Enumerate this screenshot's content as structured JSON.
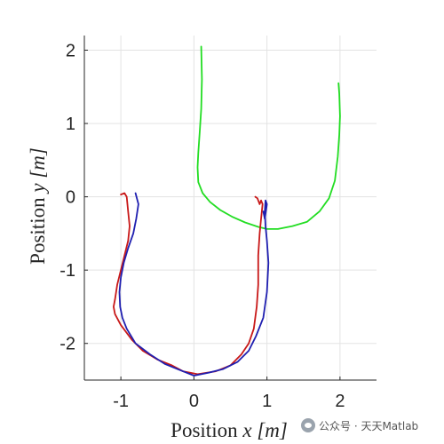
{
  "chart_data": {
    "type": "line",
    "xlabel": {
      "prefix": "Position ",
      "var": "x",
      "unit": "[m]"
    },
    "ylabel": {
      "prefix": "Position ",
      "var": "y",
      "unit": "[m]"
    },
    "xlim": [
      -1.5,
      2.5
    ],
    "ylim": [
      -2.5,
      2.2
    ],
    "xticks": [
      -1,
      0,
      1,
      2
    ],
    "xtick_labels": [
      "-1",
      "0",
      "1",
      "2"
    ],
    "yticks": [
      -2,
      -1,
      0,
      1,
      2
    ],
    "ytick_labels": [
      "-2",
      "-1",
      "0",
      "1",
      "2"
    ],
    "grid": true,
    "series": [
      {
        "color": "#22dd22",
        "x": [
          0.1,
          0.11,
          0.1,
          0.08,
          0.06,
          0.05,
          0.06,
          0.12,
          0.22,
          0.36,
          0.52,
          0.7,
          0.88,
          1.0,
          1.15,
          1.35,
          1.55,
          1.72,
          1.85,
          1.93,
          1.97,
          1.99,
          2.0,
          1.99,
          1.98
        ],
        "y": [
          2.05,
          1.6,
          1.2,
          0.9,
          0.6,
          0.4,
          0.2,
          0.05,
          -0.07,
          -0.18,
          -0.27,
          -0.35,
          -0.41,
          -0.44,
          -0.44,
          -0.4,
          -0.34,
          -0.2,
          -0.02,
          0.22,
          0.55,
          0.85,
          1.1,
          1.4,
          1.55
        ]
      },
      {
        "color": "#c81818",
        "x": [
          -1.0,
          -0.95,
          -0.92,
          -0.9,
          -0.88,
          -0.9,
          -0.95,
          -1.0,
          -1.05,
          -1.08,
          -1.1,
          -1.08,
          -1.0,
          -0.85,
          -0.7,
          -0.5,
          -0.3,
          -0.15,
          0.05,
          0.3,
          0.5,
          0.65,
          0.75,
          0.82,
          0.86,
          0.88,
          0.88,
          0.9,
          0.92,
          0.94,
          0.92,
          0.9,
          0.87,
          0.84
        ],
        "y": [
          0.03,
          0.05,
          0.0,
          -0.2,
          -0.4,
          -0.6,
          -0.8,
          -1.0,
          -1.2,
          -1.4,
          -1.5,
          -1.6,
          -1.75,
          -1.95,
          -2.1,
          -2.22,
          -2.3,
          -2.38,
          -2.42,
          -2.38,
          -2.3,
          -2.15,
          -2.0,
          -1.8,
          -1.5,
          -1.2,
          -0.8,
          -0.5,
          -0.3,
          -0.1,
          -0.05,
          -0.1,
          -0.02,
          0.0
        ]
      },
      {
        "color": "#1f1fb0",
        "x": [
          -0.8,
          -0.76,
          -0.79,
          -0.83,
          -0.9,
          -0.96,
          -1.0,
          -1.02,
          -1.01,
          -0.98,
          -0.92,
          -0.8,
          -0.6,
          -0.4,
          -0.2,
          0.0,
          0.2,
          0.4,
          0.6,
          0.75,
          0.85,
          0.95,
          1.0,
          1.02,
          1.0,
          0.98,
          0.97,
          0.98,
          1.0,
          0.97,
          0.95
        ],
        "y": [
          0.05,
          -0.1,
          -0.3,
          -0.5,
          -0.7,
          -0.9,
          -1.1,
          -1.3,
          -1.5,
          -1.65,
          -1.8,
          -2.0,
          -2.15,
          -2.28,
          -2.36,
          -2.44,
          -2.4,
          -2.35,
          -2.25,
          -2.1,
          -1.9,
          -1.65,
          -1.3,
          -0.9,
          -0.6,
          -0.4,
          -0.2,
          -0.05,
          -0.1,
          -0.3,
          -0.2
        ]
      }
    ]
  },
  "watermark": {
    "text": "公众号 · 天天Matlab",
    "icon": "wechat-icon"
  }
}
